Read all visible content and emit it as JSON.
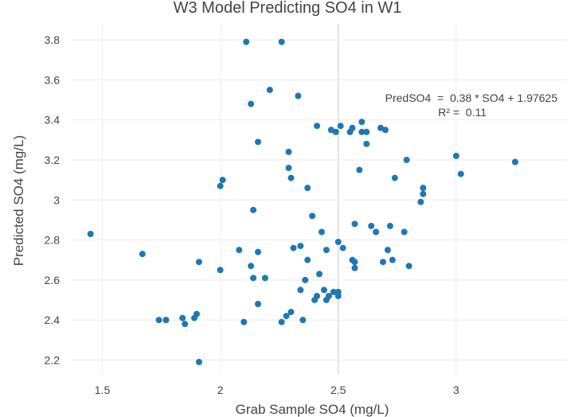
{
  "chart_data": {
    "type": "scatter",
    "title": "W3 Model Predicting SO4 in W1",
    "xlabel": "Grab Sample SO4 (mg/L)",
    "ylabel": "Predicted SO4 (mg/L)",
    "xlim": [
      1.37,
      3.47
    ],
    "ylim": [
      2.13,
      3.88
    ],
    "x_ticks": [
      1.5,
      2,
      2.5,
      3
    ],
    "x_tick_labels": [
      "1.5",
      "2",
      "2.5",
      "3"
    ],
    "y_ticks": [
      2.2,
      2.4,
      2.6,
      2.8,
      3,
      3.2,
      3.4,
      3.6,
      3.8
    ],
    "y_tick_labels": [
      "2.2",
      "2.4",
      "2.6",
      "2.8",
      "3",
      "3.2",
      "3.4",
      "3.6",
      "3.8"
    ],
    "grid": true,
    "marker_color": "#1f77b4",
    "annotation": {
      "line1": "PredSO4  =  0.38 * SO4 + 1.97625",
      "line2": "R² =  0.11"
    },
    "points": [
      [
        1.45,
        2.83
      ],
      [
        1.67,
        2.73
      ],
      [
        1.74,
        2.4
      ],
      [
        1.77,
        2.4
      ],
      [
        1.84,
        2.41
      ],
      [
        1.85,
        2.38
      ],
      [
        1.89,
        2.41
      ],
      [
        1.9,
        2.43
      ],
      [
        1.91,
        2.19
      ],
      [
        1.91,
        2.69
      ],
      [
        2.0,
        2.65
      ],
      [
        2.0,
        3.07
      ],
      [
        2.01,
        3.1
      ],
      [
        2.08,
        2.75
      ],
      [
        2.1,
        2.39
      ],
      [
        2.11,
        3.79
      ],
      [
        2.13,
        2.67
      ],
      [
        2.13,
        3.48
      ],
      [
        2.14,
        2.61
      ],
      [
        2.14,
        2.95
      ],
      [
        2.16,
        2.48
      ],
      [
        2.16,
        2.74
      ],
      [
        2.16,
        3.29
      ],
      [
        2.19,
        2.61
      ],
      [
        2.21,
        3.55
      ],
      [
        2.26,
        2.39
      ],
      [
        2.26,
        3.79
      ],
      [
        2.28,
        2.42
      ],
      [
        2.29,
        3.16
      ],
      [
        2.29,
        3.24
      ],
      [
        2.3,
        2.44
      ],
      [
        2.3,
        3.11
      ],
      [
        2.31,
        2.76
      ],
      [
        2.33,
        3.52
      ],
      [
        2.34,
        2.55
      ],
      [
        2.34,
        2.77
      ],
      [
        2.35,
        2.4
      ],
      [
        2.36,
        2.6
      ],
      [
        2.37,
        2.7
      ],
      [
        2.37,
        3.06
      ],
      [
        2.39,
        2.92
      ],
      [
        2.4,
        2.5
      ],
      [
        2.41,
        2.52
      ],
      [
        2.41,
        3.37
      ],
      [
        2.42,
        2.63
      ],
      [
        2.43,
        2.84
      ],
      [
        2.44,
        2.55
      ],
      [
        2.45,
        2.5
      ],
      [
        2.45,
        2.75
      ],
      [
        2.46,
        2.52
      ],
      [
        2.47,
        3.35
      ],
      [
        2.48,
        2.54
      ],
      [
        2.49,
        3.34
      ],
      [
        2.5,
        2.54
      ],
      [
        2.5,
        2.52
      ],
      [
        2.5,
        2.79
      ],
      [
        2.51,
        3.37
      ],
      [
        2.52,
        2.76
      ],
      [
        2.55,
        3.34
      ],
      [
        2.56,
        3.36
      ],
      [
        2.56,
        2.7
      ],
      [
        2.57,
        2.69
      ],
      [
        2.57,
        2.66
      ],
      [
        2.57,
        2.88
      ],
      [
        2.59,
        3.15
      ],
      [
        2.6,
        3.34
      ],
      [
        2.6,
        3.39
      ],
      [
        2.62,
        3.34
      ],
      [
        2.62,
        3.28
      ],
      [
        2.64,
        2.87
      ],
      [
        2.66,
        2.84
      ],
      [
        2.68,
        3.36
      ],
      [
        2.69,
        2.69
      ],
      [
        2.7,
        3.35
      ],
      [
        2.71,
        2.75
      ],
      [
        2.72,
        2.87
      ],
      [
        2.73,
        2.7
      ],
      [
        2.74,
        3.11
      ],
      [
        2.78,
        2.84
      ],
      [
        2.79,
        3.2
      ],
      [
        2.8,
        2.67
      ],
      [
        2.85,
        2.99
      ],
      [
        2.86,
        3.06
      ],
      [
        2.86,
        3.03
      ],
      [
        3.0,
        3.22
      ],
      [
        3.02,
        3.13
      ],
      [
        3.25,
        3.19
      ]
    ]
  }
}
